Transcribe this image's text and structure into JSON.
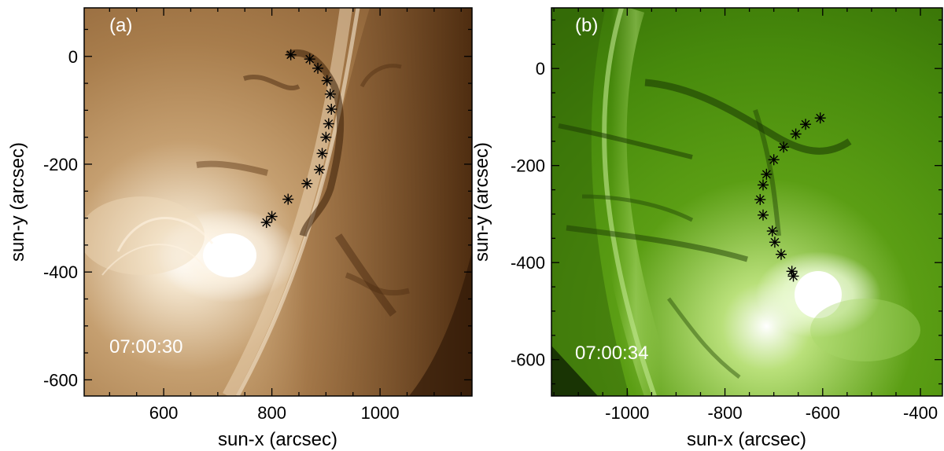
{
  "panels": [
    {
      "id": "a",
      "panel_label": "(a)",
      "timestamp": "07:00:30",
      "xlabel": "sun-x (arcsec)",
      "ylabel": "sun-y (arcsec)",
      "xlim": [
        453,
        1170
      ],
      "ylim": [
        -630,
        90
      ],
      "xticks": [
        600,
        800,
        1000
      ],
      "xtick_labels": [
        "600",
        "800",
        "1000"
      ],
      "yticks": [
        0,
        -200,
        -400,
        -600
      ],
      "ytick_labels": [
        "0",
        "-200",
        "-400",
        "-600"
      ],
      "colors": {
        "bright": "#ffffff",
        "mid": "#c7a072",
        "dark": "#5a3514",
        "shadow": "#2a1708"
      },
      "markers": [
        [
          835,
          3
        ],
        [
          870,
          -5
        ],
        [
          885,
          -22
        ],
        [
          902,
          -45
        ],
        [
          908,
          -70
        ],
        [
          910,
          -98
        ],
        [
          905,
          -125
        ],
        [
          900,
          -150
        ],
        [
          893,
          -180
        ],
        [
          888,
          -210
        ],
        [
          865,
          -236
        ],
        [
          830,
          -265
        ],
        [
          800,
          -297
        ],
        [
          790,
          -308
        ]
      ]
    },
    {
      "id": "b",
      "panel_label": "(b)",
      "timestamp": "07:00:34",
      "xlabel": "sun-x (arcsec)",
      "ylabel": "sun-y (arcsec)",
      "xlim": [
        -1155,
        -355
      ],
      "ylim": [
        -675,
        125
      ],
      "xticks": [
        -1000,
        -800,
        -600,
        -400
      ],
      "xtick_labels": [
        "-1000",
        "-800",
        "-600",
        "-400"
      ],
      "yticks": [
        0,
        -200,
        -400,
        -600
      ],
      "ytick_labels": [
        "0",
        "-200",
        "-400",
        "-600"
      ],
      "colors": {
        "bright": "#f5ffe8",
        "mid": "#5fa215",
        "dark": "#244a05",
        "shadow": "#0f2202"
      },
      "markers": [
        [
          -605,
          -102
        ],
        [
          -635,
          -115
        ],
        [
          -655,
          -135
        ],
        [
          -680,
          -162
        ],
        [
          -700,
          -188
        ],
        [
          -715,
          -218
        ],
        [
          -722,
          -240
        ],
        [
          -728,
          -270
        ],
        [
          -722,
          -302
        ],
        [
          -703,
          -335
        ],
        [
          -698,
          -358
        ],
        [
          -685,
          -383
        ],
        [
          -663,
          -418
        ],
        [
          -660,
          -428
        ]
      ]
    }
  ]
}
